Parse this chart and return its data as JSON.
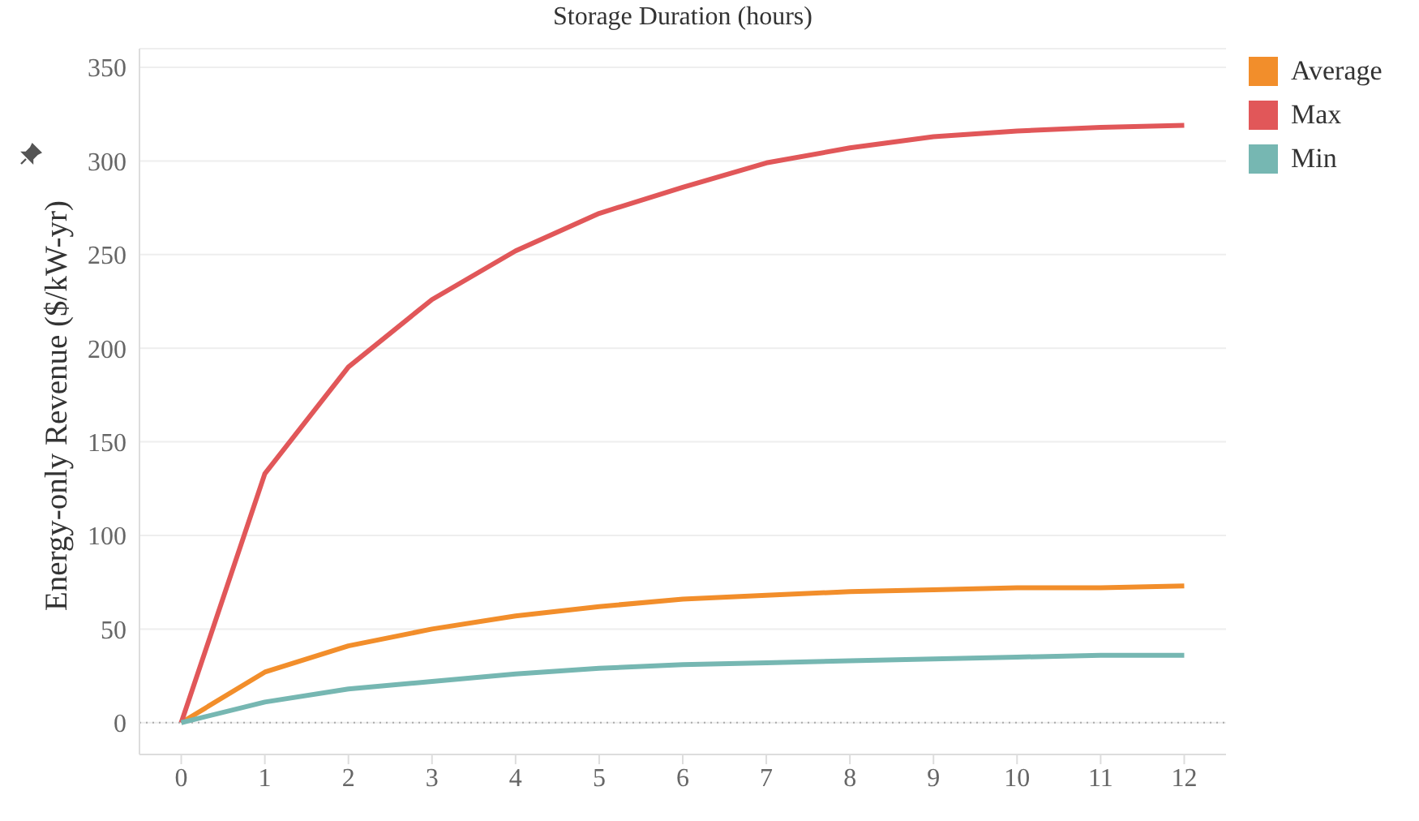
{
  "chart_data": {
    "type": "line",
    "xlabel": "Storage Duration (hours)",
    "ylabel": "Energy-only Revenue ($/kW-yr)",
    "x": [
      0,
      1,
      2,
      3,
      4,
      5,
      6,
      7,
      8,
      9,
      10,
      11,
      12
    ],
    "series": [
      {
        "name": "Average",
        "color": "#f28e2b",
        "values": [
          0,
          27,
          41,
          50,
          57,
          62,
          66,
          68,
          70,
          71,
          72,
          72,
          73
        ]
      },
      {
        "name": "Max",
        "color": "#e15759",
        "values": [
          0,
          133,
          190,
          226,
          252,
          272,
          286,
          299,
          307,
          313,
          316,
          318,
          319
        ]
      },
      {
        "name": "Min",
        "color": "#76b7b2",
        "values": [
          0,
          11,
          18,
          22,
          26,
          29,
          31,
          32,
          33,
          34,
          35,
          36,
          36
        ]
      }
    ],
    "xlim": [
      -0.5,
      12.5
    ],
    "xticks": [
      0,
      1,
      2,
      3,
      4,
      5,
      6,
      7,
      8,
      9,
      10,
      11,
      12
    ],
    "ylim": [
      -17,
      360
    ],
    "yticks": [
      0,
      50,
      100,
      150,
      200,
      250,
      300,
      350
    ],
    "ref_lines": [
      {
        "axis": "y",
        "value": 0,
        "line_style": "dotted",
        "color": "#aaaaaa"
      }
    ],
    "grid": "y",
    "legend": "top right",
    "marker": "none",
    "line_style": "solid"
  }
}
